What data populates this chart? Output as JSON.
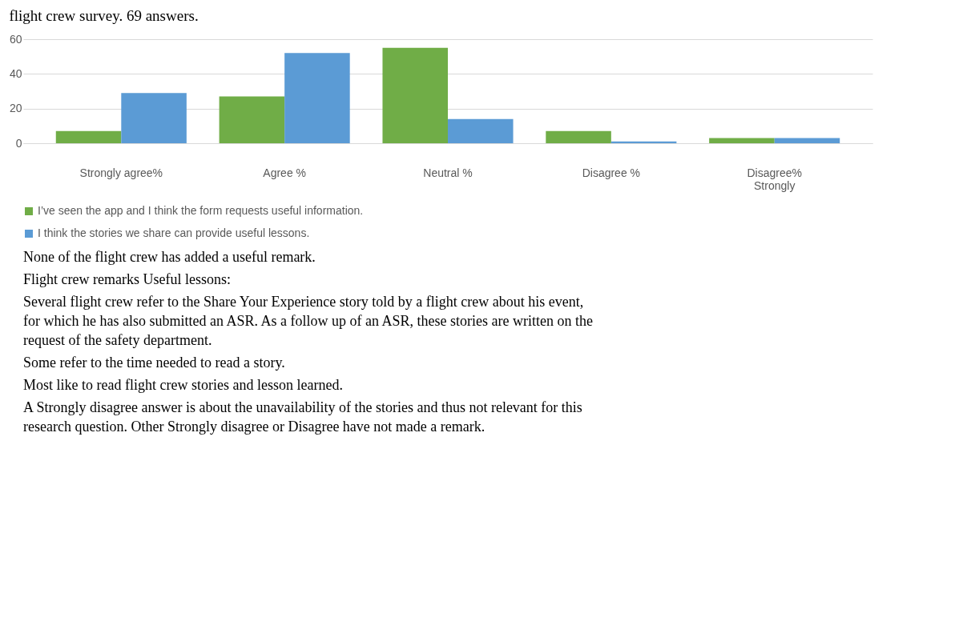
{
  "chart_data": {
    "type": "bar",
    "title": "flight crew survey. 69 answers.",
    "categories": [
      "Strongly agree%",
      "Agree %",
      "Neutral %",
      "Disagree %",
      "Disagree%\nStrongly"
    ],
    "series": [
      {
        "name": "I’ve seen the app and I think the form requests useful information.",
        "color": "#70ad47",
        "values": [
          7,
          27,
          55,
          7,
          3
        ]
      },
      {
        "name": "I think the stories we share can provide useful lessons.",
        "color": "#5b9bd5",
        "values": [
          29,
          52,
          14,
          1,
          3
        ]
      }
    ],
    "ylim": [
      0,
      60
    ],
    "yticks": [
      0,
      20,
      40,
      60
    ],
    "grid": "y",
    "legend": "bottom",
    "annotations": [
      "None of the flight crew has added a useful remark.",
      "Flight crew remarks Useful lessons:",
      "Several flight crew refer to the Share Your Experience story told by a flight crew about his event, for which he has also submitted an ASR. As a follow up of an ASR, these stories are written on the request of the safety department.",
      "Some refer to the time needed to read a story.",
      "Most like to read flight crew stories and lesson learned.",
      "A Strongly disagree answer is about the unavailability of the stories and thus not relevant for this research question. Other Strongly disagree or Disagree have not made a remark."
    ]
  }
}
